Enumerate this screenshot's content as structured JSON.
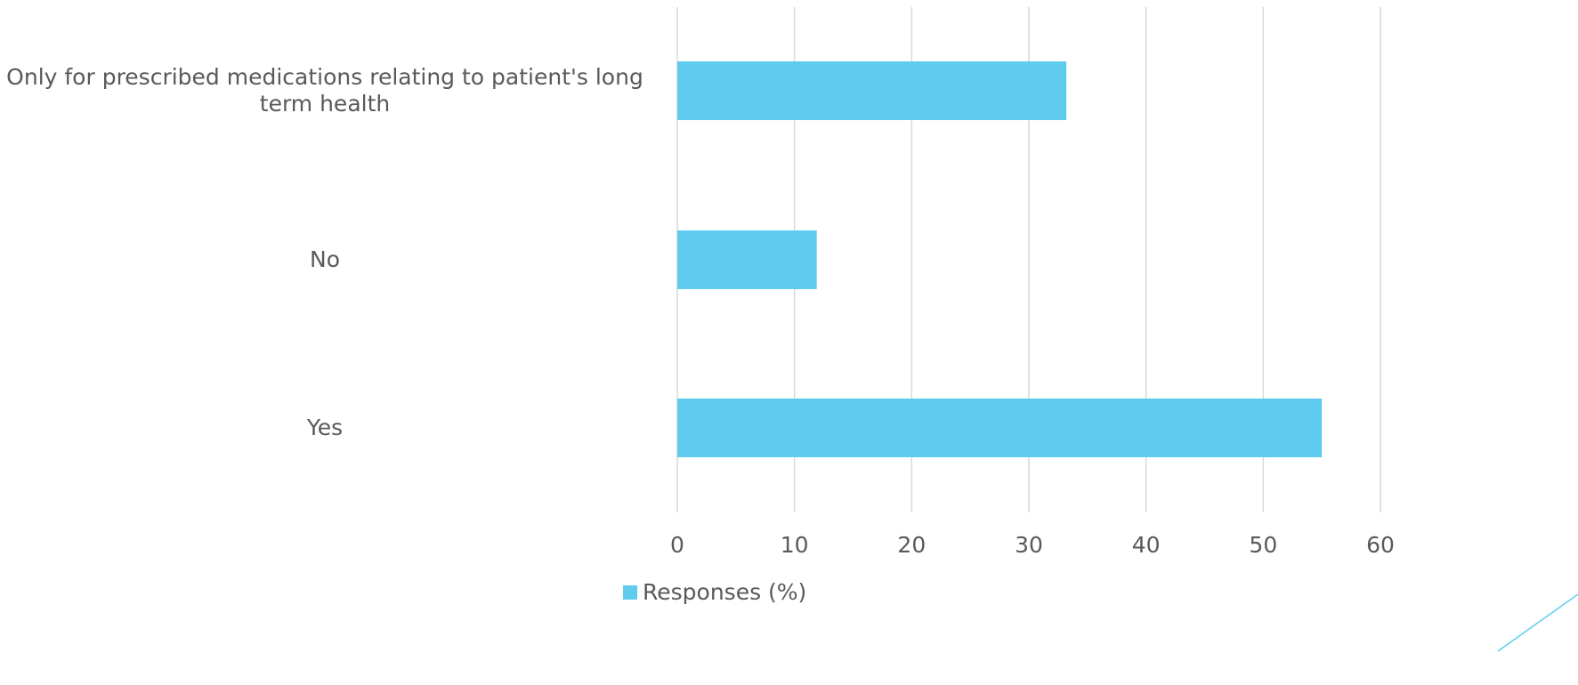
{
  "chart_data": {
    "type": "bar",
    "orientation": "horizontal",
    "categories": [
      "Only for prescribed medications relating to patient's long term health",
      "No",
      "Yes"
    ],
    "series": [
      {
        "name": "Responses (%)",
        "values": [
          33.2,
          11.9,
          55.0
        ],
        "color": "#5ecbef"
      }
    ],
    "xlim": [
      0,
      60
    ],
    "x_ticks": [
      "0",
      "10",
      "20",
      "30",
      "40",
      "50",
      "60"
    ],
    "grid": true,
    "gridline_color": "#d9d9d9",
    "legend": "bottom",
    "decoration_color": "#5ecbef"
  }
}
